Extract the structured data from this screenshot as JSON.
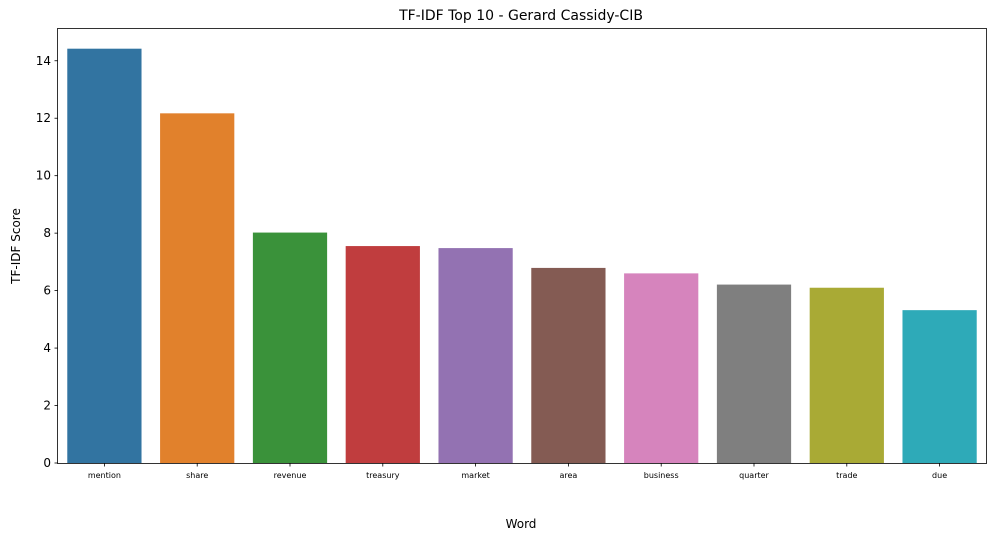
{
  "chart_data": {
    "type": "bar",
    "title": "TF-IDF Top 10 - Gerard Cassidy-CIB",
    "xlabel": "Word",
    "ylabel": "TF-IDF Score",
    "categories": [
      "mention",
      "share",
      "revenue",
      "treasury",
      "market",
      "area",
      "business",
      "quarter",
      "trade",
      "due"
    ],
    "values": [
      14.42,
      12.17,
      8.02,
      7.55,
      7.48,
      6.79,
      6.6,
      6.21,
      6.1,
      5.32
    ],
    "colors": [
      "#3274a1",
      "#e1812c",
      "#3a923a",
      "#c03d3e",
      "#9372b2",
      "#845b53",
      "#d684bd",
      "#7f7f7f",
      "#a9aa35",
      "#2eaab8"
    ],
    "ylim": [
      0,
      15.14
    ],
    "yticks": [
      0,
      2,
      4,
      6,
      8,
      10,
      12,
      14
    ],
    "grid": false,
    "legend": "none"
  }
}
